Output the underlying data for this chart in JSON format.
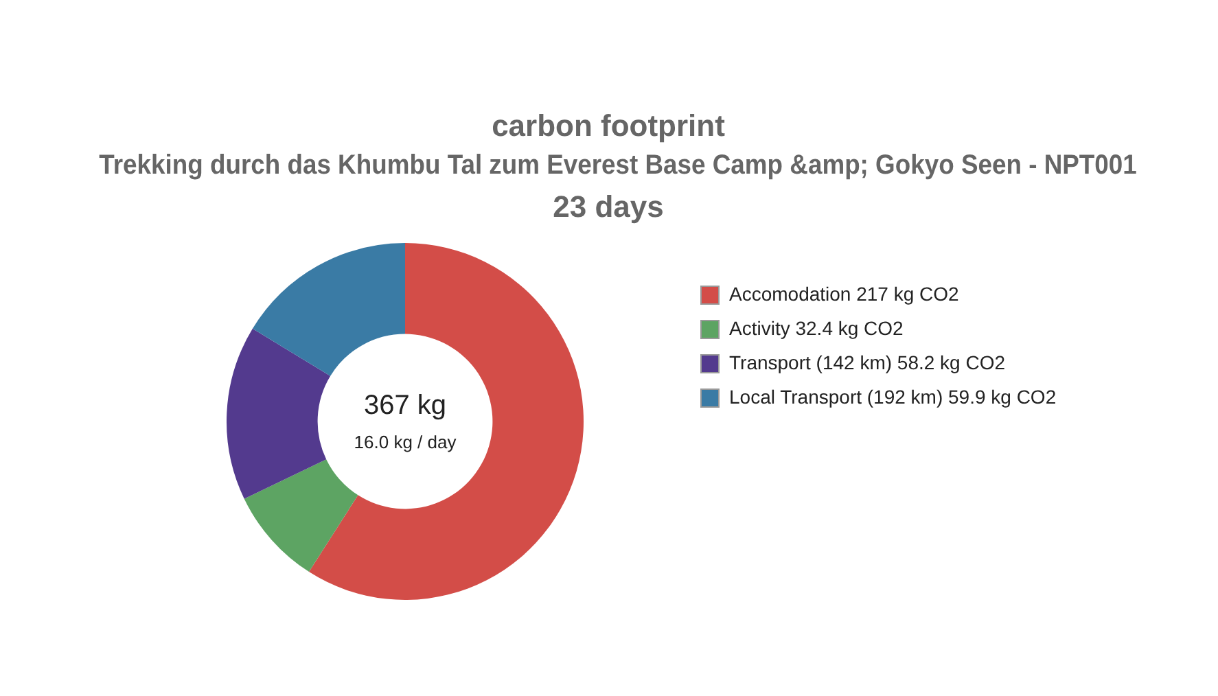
{
  "chart_data": {
    "type": "donut",
    "title": "carbon footprint",
    "subtitle": "Trekking durch das Khumbu Tal zum Everest Base Camp &amp; Gokyo Seen - NPT001",
    "annotations": [
      "23 days",
      "367 kg",
      "16.0 kg / day"
    ],
    "categories": [
      "Accomodation 217 kg CO2",
      "Activity 32.4 kg CO2",
      "Transport (142 km) 58.2 kg CO2",
      "Local Transport (192 km) 59.9 kg CO2"
    ],
    "values": [
      217,
      32.4,
      58.2,
      59.9
    ],
    "colors": [
      "#d34d48",
      "#5da463",
      "#533a8e",
      "#3a7ba5"
    ],
    "legend": "right"
  }
}
